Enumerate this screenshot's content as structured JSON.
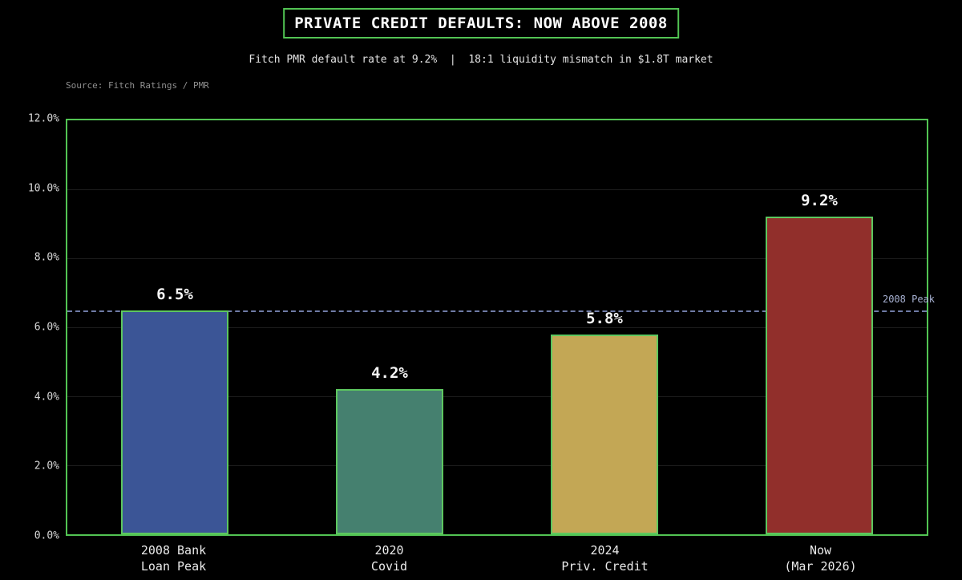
{
  "header": {
    "title": "PRIVATE CREDIT DEFAULTS: NOW ABOVE 2008",
    "subtitle": "Fitch PMR default rate at 9.2%  |  18:1 liquidity mismatch in $1.8T market",
    "source": "Source: Fitch Ratings / PMR"
  },
  "colors": {
    "background": "#000000",
    "accent_green": "#52c453",
    "bar_border_green": "#5dc75f",
    "gridline": "#1d1d1d",
    "tick_label": "#d6d6d6",
    "x_label": "#eaeaea",
    "value_label": "#f5f5f5",
    "subtitle_text": "#e3e3e3",
    "source_text": "#909090"
  },
  "chart_data": {
    "type": "bar",
    "title": "PRIVATE CREDIT DEFAULTS: NOW ABOVE 2008",
    "subtitle": "Fitch PMR default rate at 9.2%  |  18:1 liquidity mismatch in $1.8T market",
    "source": "Source: Fitch Ratings / PMR",
    "categories": [
      {
        "line1": "2008 Bank",
        "line2": "Loan Peak"
      },
      {
        "line1": "2020",
        "line2": "Covid"
      },
      {
        "line1": "2024",
        "line2": "Priv. Credit"
      },
      {
        "line1": "Now",
        "line2": "(Mar 2026)"
      }
    ],
    "values": [
      6.5,
      4.2,
      5.8,
      9.2
    ],
    "value_labels": [
      "6.5%",
      "4.2%",
      "5.8%",
      "9.2%"
    ],
    "bar_colors": [
      "#3b5596",
      "#45806f",
      "#c3a755",
      "#912f2b"
    ],
    "bar_border_color": "#5dc75f",
    "xlabel": "",
    "ylabel": "",
    "ylim": [
      0,
      12
    ],
    "y_ticks": [
      "12.0%",
      "10.0%",
      "8.0%",
      "6.0%",
      "4.0%",
      "2.0%",
      "0.0%"
    ],
    "y_tick_values": [
      12,
      10,
      8,
      6,
      4,
      2,
      0
    ],
    "grid": true,
    "legend_position": "none",
    "reference_line": {
      "value": 6.5,
      "label": "2008 Peak",
      "line_color": "#6f7ba6",
      "label_color": "#a7b1d2"
    }
  }
}
